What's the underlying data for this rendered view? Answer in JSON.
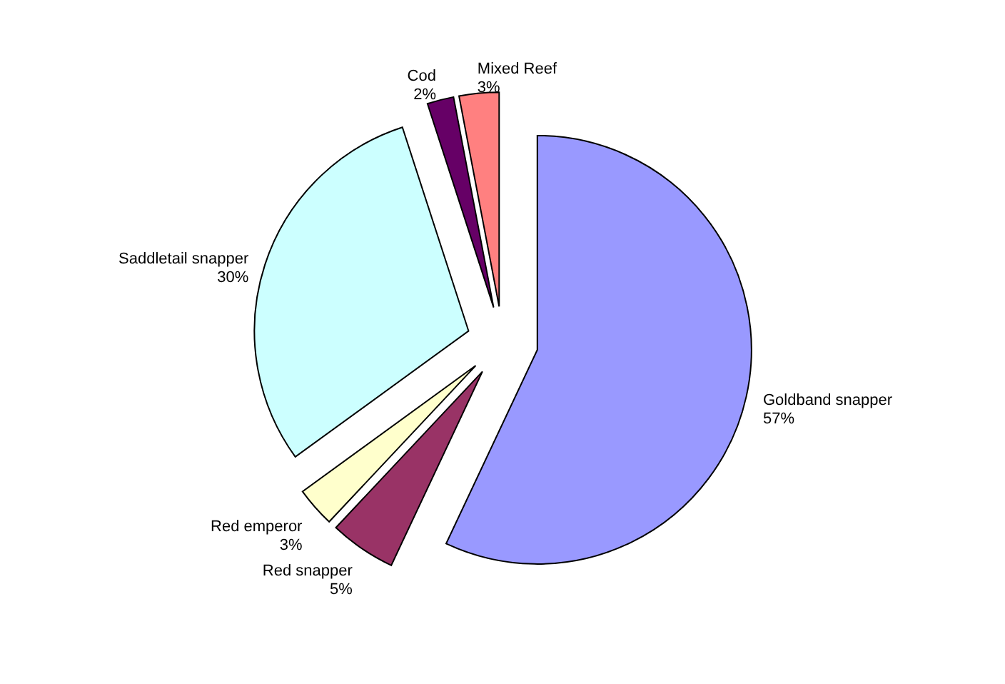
{
  "chart_data": {
    "type": "pie",
    "categories": [
      "Goldband snapper",
      "Red snapper",
      "Red emperor",
      "Saddletail snapper",
      "Cod",
      "Mixed Reef"
    ],
    "values": [
      57,
      5,
      3,
      30,
      2,
      3
    ],
    "colors": [
      "#9999ff",
      "#993366",
      "#ffffcc",
      "#ccffff",
      "#660066",
      "#ff8080"
    ],
    "value_labels": [
      "57%",
      "5%",
      "3%",
      "30%",
      "2%",
      "3%"
    ]
  }
}
